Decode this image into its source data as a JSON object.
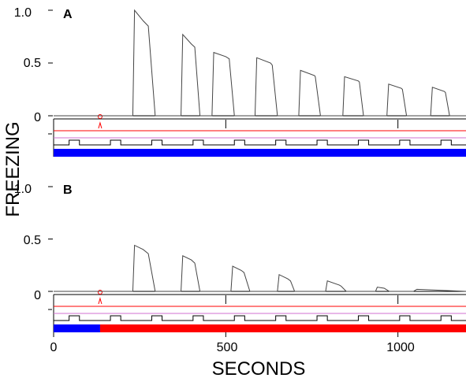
{
  "chart_data": [
    {
      "type": "line",
      "panel_label": "A",
      "x": [
        0,
        230,
        235,
        260,
        275,
        295,
        370,
        375,
        400,
        410,
        425,
        460,
        465,
        500,
        510,
        525,
        585,
        590,
        630,
        635,
        650,
        712,
        717,
        758,
        760,
        775,
        840,
        845,
        885,
        888,
        900,
        968,
        973,
        1010,
        1013,
        1025,
        1095,
        1100,
        1135,
        1138,
        1150,
        1200
      ],
      "y": [
        0,
        0,
        1.0,
        0.9,
        0.85,
        0,
        0,
        0.77,
        0.68,
        0.65,
        0,
        0,
        0.6,
        0.56,
        0.54,
        0,
        0,
        0.55,
        0.5,
        0.48,
        0,
        0,
        0.43,
        0.38,
        0.37,
        0,
        0,
        0.37,
        0.33,
        0.32,
        0,
        0,
        0.3,
        0.26,
        0.25,
        0,
        0,
        0.27,
        0.23,
        0.22,
        0,
        0
      ],
      "xlim": [
        0,
        1200
      ],
      "ylim": [
        0,
        1
      ],
      "yticks": [
        "0",
        "0.5",
        "1.0"
      ],
      "bar_segments": [
        {
          "from": 0,
          "to": 1200,
          "color": "#0000ff"
        }
      ]
    },
    {
      "type": "line",
      "panel_label": "B",
      "x": [
        0,
        230,
        235,
        260,
        275,
        295,
        370,
        375,
        400,
        410,
        425,
        515,
        520,
        545,
        553,
        570,
        650,
        655,
        680,
        688,
        700,
        790,
        795,
        830,
        835,
        850,
        935,
        940,
        960,
        965,
        975,
        1045,
        1055,
        1200
      ],
      "y": [
        0,
        0,
        0.44,
        0.4,
        0.36,
        0,
        0,
        0.34,
        0.3,
        0.27,
        0,
        0,
        0.24,
        0.2,
        0.18,
        0,
        0,
        0.16,
        0.12,
        0.1,
        0,
        0,
        0.1,
        0.06,
        0.05,
        0,
        0,
        0.04,
        0.03,
        0.02,
        0,
        0,
        0.02,
        0
      ],
      "xlim": [
        0,
        1200
      ],
      "ylim": [
        0,
        1
      ],
      "yticks": [
        "0",
        "0.5",
        "1.0"
      ],
      "bar_segments": [
        {
          "from": 0,
          "to": 135,
          "color": "#0000ff"
        },
        {
          "from": 135,
          "to": 1200,
          "color": "#ff0000"
        }
      ]
    }
  ],
  "x_axis": {
    "ticks": [
      0,
      500,
      1000
    ],
    "tick_labels": [
      "0",
      "500",
      "1000"
    ],
    "title": "SECONDS"
  },
  "y_axis_title": "FREEZING",
  "markers": {
    "dashed_lines_at": [
      500,
      1000
    ],
    "circle_at": 135,
    "pulse_period": 120,
    "pulse_first": 45,
    "pulse_width": 30
  },
  "colors": {
    "trace": "#444444",
    "axis": "#000000",
    "red_line": "#ff0000",
    "pink_line": "#d070d0",
    "blue": "#0000ff",
    "red": "#ff0000"
  }
}
